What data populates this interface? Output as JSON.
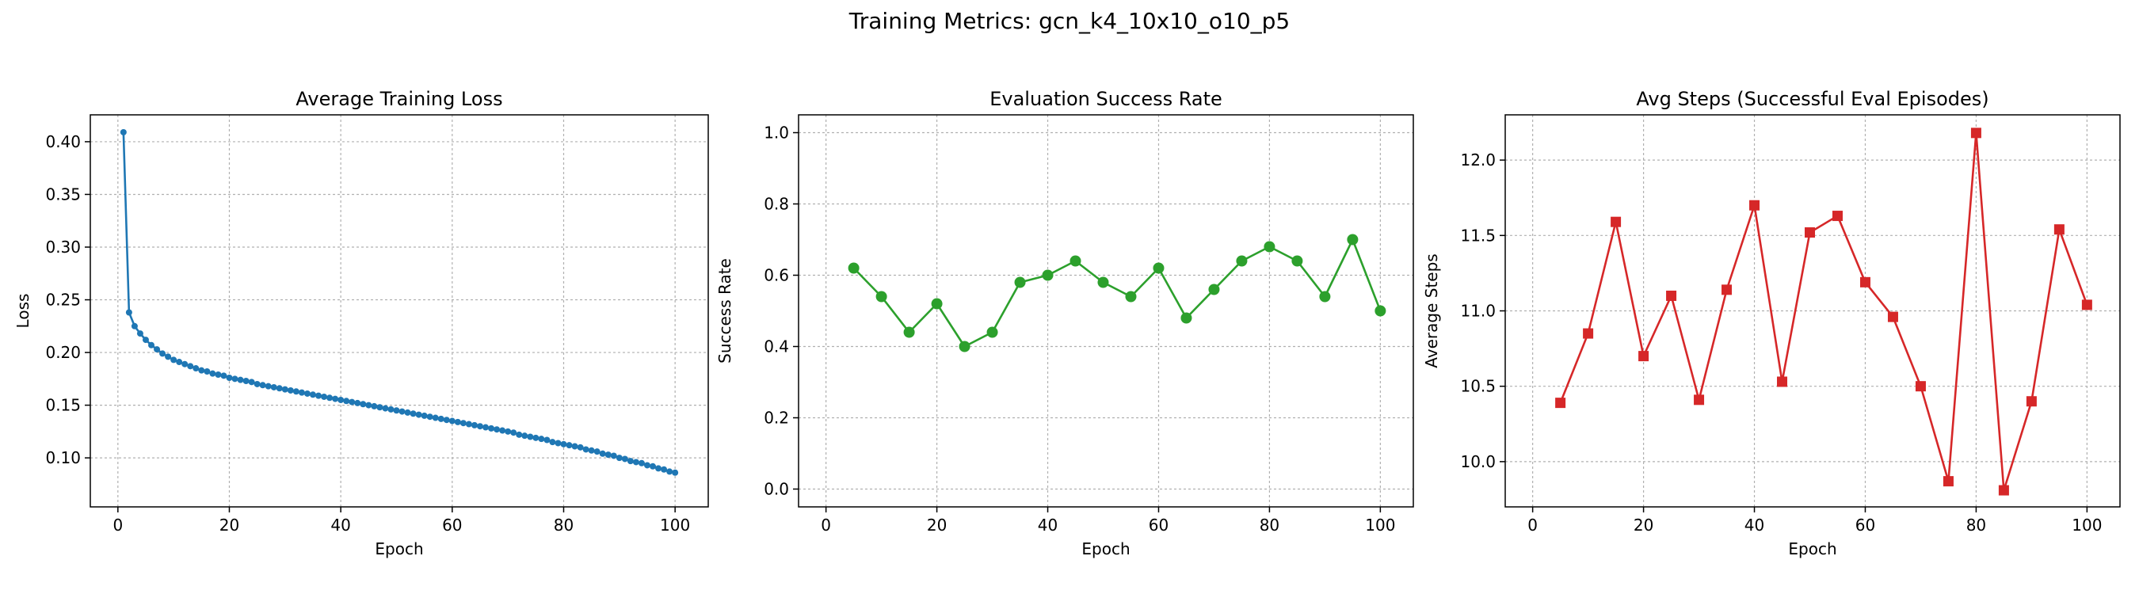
{
  "figure_title": "Training Metrics: gcn_k4_10x10_o10_p5",
  "chart_data": [
    {
      "type": "line",
      "title": "Average Training Loss",
      "xlabel": "Epoch",
      "ylabel": "Loss",
      "xlim": [
        -4.95,
        105.95
      ],
      "ylim": [
        0.0535,
        0.4255
      ],
      "xticks": [
        0,
        20,
        40,
        60,
        80,
        100
      ],
      "xtick_labels": [
        "0",
        "20",
        "40",
        "60",
        "80",
        "100"
      ],
      "yticks": [
        0.1,
        0.15,
        0.2,
        0.25,
        0.3,
        0.35,
        0.4
      ],
      "ytick_labels": [
        "0.10",
        "0.15",
        "0.20",
        "0.25",
        "0.30",
        "0.35",
        "0.40"
      ],
      "grid": true,
      "color": "#1f77b4",
      "marker": "circle",
      "series": [
        {
          "x": [
            1,
            2,
            3,
            4,
            5,
            6,
            7,
            8,
            9,
            10,
            11,
            12,
            13,
            14,
            15,
            16,
            17,
            18,
            19,
            20,
            21,
            22,
            23,
            24,
            25,
            26,
            27,
            28,
            29,
            30,
            31,
            32,
            33,
            34,
            35,
            36,
            37,
            38,
            39,
            40,
            41,
            42,
            43,
            44,
            45,
            46,
            47,
            48,
            49,
            50,
            51,
            52,
            53,
            54,
            55,
            56,
            57,
            58,
            59,
            60,
            61,
            62,
            63,
            64,
            65,
            66,
            67,
            68,
            69,
            70,
            71,
            72,
            73,
            74,
            75,
            76,
            77,
            78,
            79,
            80,
            81,
            82,
            83,
            84,
            85,
            86,
            87,
            88,
            89,
            90,
            91,
            92,
            93,
            94,
            95,
            96,
            97,
            98,
            99,
            100
          ],
          "values": [
            0.409,
            0.238,
            0.225,
            0.218,
            0.212,
            0.207,
            0.203,
            0.199,
            0.196,
            0.193,
            0.191,
            0.189,
            0.187,
            0.185,
            0.183,
            0.182,
            0.18,
            0.179,
            0.178,
            0.176,
            0.175,
            0.174,
            0.173,
            0.172,
            0.17,
            0.169,
            0.168,
            0.167,
            0.166,
            0.165,
            0.164,
            0.163,
            0.162,
            0.161,
            0.16,
            0.159,
            0.158,
            0.157,
            0.156,
            0.155,
            0.154,
            0.153,
            0.152,
            0.151,
            0.15,
            0.149,
            0.148,
            0.147,
            0.146,
            0.145,
            0.144,
            0.143,
            0.142,
            0.141,
            0.14,
            0.139,
            0.138,
            0.137,
            0.136,
            0.135,
            0.134,
            0.133,
            0.132,
            0.131,
            0.13,
            0.129,
            0.128,
            0.127,
            0.126,
            0.125,
            0.124,
            0.122,
            0.121,
            0.12,
            0.119,
            0.118,
            0.117,
            0.115,
            0.114,
            0.113,
            0.112,
            0.111,
            0.11,
            0.108,
            0.107,
            0.106,
            0.104,
            0.103,
            0.102,
            0.1,
            0.099,
            0.097,
            0.096,
            0.095,
            0.093,
            0.092,
            0.09,
            0.089,
            0.087,
            0.086
          ]
        }
      ]
    },
    {
      "type": "line",
      "title": "Evaluation Success Rate",
      "xlabel": "Epoch",
      "ylabel": "Success Rate",
      "xlim": [
        -4.95,
        105.95
      ],
      "ylim": [
        -0.05,
        1.05
      ],
      "xticks": [
        0,
        20,
        40,
        60,
        80,
        100
      ],
      "xtick_labels": [
        "0",
        "20",
        "40",
        "60",
        "80",
        "100"
      ],
      "yticks": [
        0.0,
        0.2,
        0.4,
        0.6,
        0.8,
        1.0
      ],
      "ytick_labels": [
        "0.0",
        "0.2",
        "0.4",
        "0.6",
        "0.8",
        "1.0"
      ],
      "grid": true,
      "color": "#2ca02c",
      "marker": "circle",
      "series": [
        {
          "x": [
            5,
            10,
            15,
            20,
            25,
            30,
            35,
            40,
            45,
            50,
            55,
            60,
            65,
            70,
            75,
            80,
            85,
            90,
            95,
            100
          ],
          "values": [
            0.62,
            0.54,
            0.44,
            0.52,
            0.4,
            0.44,
            0.58,
            0.6,
            0.64,
            0.58,
            0.54,
            0.62,
            0.48,
            0.56,
            0.64,
            0.68,
            0.64,
            0.54,
            0.7,
            0.5
          ]
        }
      ]
    },
    {
      "type": "line",
      "title": "Avg Steps (Successful Eval Episodes)",
      "xlabel": "Epoch",
      "ylabel": "Average Steps",
      "xlim": [
        -4.95,
        105.95
      ],
      "ylim": [
        9.7,
        12.3
      ],
      "xticks": [
        0,
        20,
        40,
        60,
        80,
        100
      ],
      "xtick_labels": [
        "0",
        "20",
        "40",
        "60",
        "80",
        "100"
      ],
      "yticks": [
        10.0,
        10.5,
        11.0,
        11.5,
        12.0
      ],
      "ytick_labels": [
        "10.0",
        "10.5",
        "11.0",
        "11.5",
        "12.0"
      ],
      "grid": true,
      "color": "#d62728",
      "marker": "square",
      "series": [
        {
          "x": [
            5,
            10,
            15,
            20,
            25,
            30,
            35,
            40,
            45,
            50,
            55,
            60,
            65,
            70,
            75,
            80,
            85,
            90,
            95,
            100
          ],
          "values": [
            10.39,
            10.85,
            11.59,
            10.7,
            11.1,
            10.41,
            11.14,
            11.7,
            10.53,
            11.52,
            11.63,
            11.19,
            10.96,
            10.5,
            9.87,
            12.18,
            9.81,
            10.4,
            11.54,
            11.04
          ]
        }
      ]
    }
  ]
}
